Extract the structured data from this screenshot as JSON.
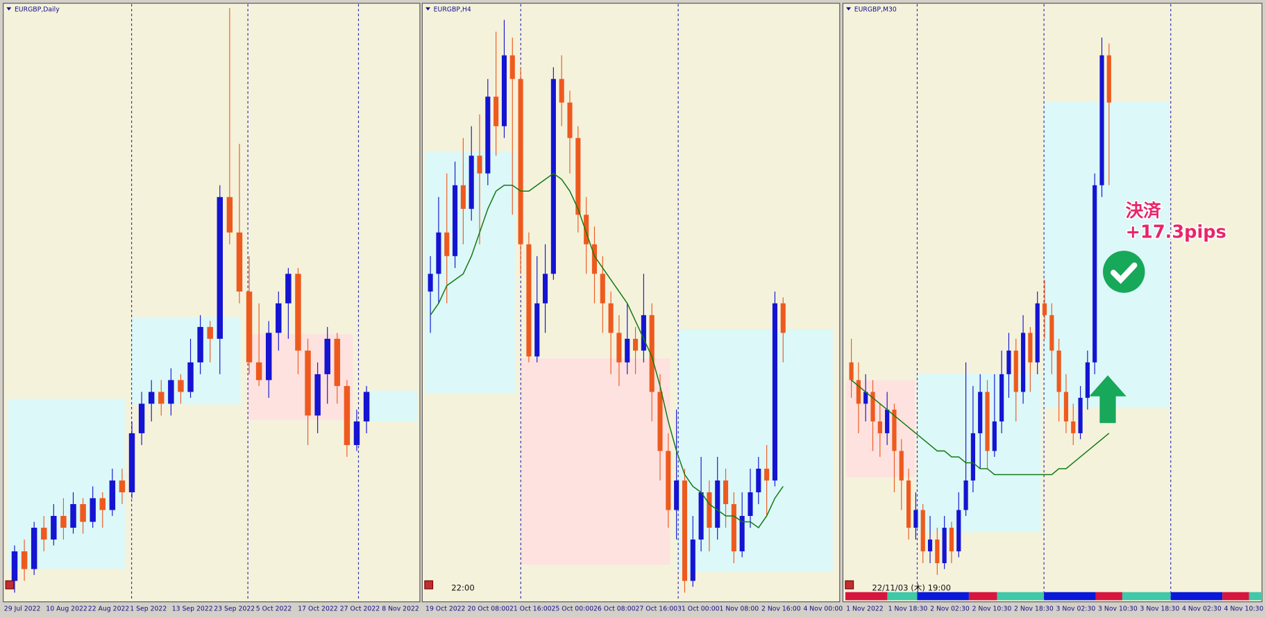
{
  "panels": [
    {
      "title": "EURGBP,Daily",
      "x_labels": [
        "29 Jul 2022",
        "10 Aug 2022",
        "22 Aug 2022",
        "1 Sep 2022",
        "13 Sep 2022",
        "23 Sep 2022",
        "5 Oct 2022",
        "17 Oct 2022",
        "27 Oct 2022",
        "8 Nov 2022"
      ],
      "candles": [
        [
          3,
          9,
          1,
          8
        ],
        [
          8,
          10,
          3,
          5
        ],
        [
          5,
          13,
          4,
          12
        ],
        [
          12,
          14,
          8,
          10
        ],
        [
          10,
          16,
          9,
          14
        ],
        [
          14,
          17,
          10,
          12
        ],
        [
          12,
          18,
          11,
          16
        ],
        [
          16,
          17,
          11,
          13
        ],
        [
          13,
          19,
          12,
          17
        ],
        [
          17,
          18,
          12,
          15
        ],
        [
          15,
          22,
          14,
          20
        ],
        [
          20,
          22,
          16,
          18
        ],
        [
          18,
          30,
          17,
          28
        ],
        [
          28,
          35,
          26,
          33
        ],
        [
          33,
          37,
          30,
          35
        ],
        [
          35,
          37,
          31,
          33
        ],
        [
          33,
          39,
          31,
          37
        ],
        [
          37,
          38,
          33,
          35
        ],
        [
          35,
          44,
          34,
          40
        ],
        [
          40,
          48,
          38,
          46
        ],
        [
          46,
          47,
          40,
          44
        ],
        [
          44,
          70,
          38,
          68
        ],
        [
          68,
          100,
          60,
          62
        ],
        [
          62,
          77,
          50,
          52
        ],
        [
          52,
          58,
          38,
          40
        ],
        [
          40,
          50,
          36,
          37
        ],
        [
          37,
          47,
          34,
          45
        ],
        [
          45,
          52,
          42,
          50
        ],
        [
          50,
          56,
          44,
          55
        ],
        [
          55,
          56,
          38,
          42
        ],
        [
          42,
          44,
          26,
          31
        ],
        [
          31,
          40,
          28,
          38
        ],
        [
          38,
          46,
          33,
          44
        ],
        [
          44,
          45,
          33,
          36
        ],
        [
          36,
          37,
          24,
          26
        ],
        [
          26,
          32,
          25,
          30
        ],
        [
          30,
          36,
          28,
          35
        ]
      ]
    },
    {
      "title": "EURGBP,H4",
      "x_labels": [
        "19 Oct 2022",
        "20 Oct 08:00",
        "21 Oct 16:00",
        "25 Oct 00:00",
        "26 Oct 08:00",
        "27 Oct 16:00",
        "31 Oct 00:00",
        "1 Nov 08:00",
        "2 Nov 16:00",
        "4 Nov 00:00"
      ],
      "time_label": "22:00",
      "candles": [
        [
          52,
          58,
          45,
          55
        ],
        [
          55,
          68,
          50,
          62
        ],
        [
          62,
          72,
          50,
          58
        ],
        [
          58,
          74,
          56,
          70
        ],
        [
          70,
          78,
          60,
          66
        ],
        [
          66,
          80,
          64,
          75
        ],
        [
          75,
          82,
          60,
          72
        ],
        [
          72,
          88,
          70,
          85
        ],
        [
          85,
          96,
          75,
          80
        ],
        [
          80,
          98,
          78,
          92
        ],
        [
          92,
          95,
          65,
          88
        ],
        [
          88,
          90,
          55,
          60
        ],
        [
          60,
          62,
          40,
          41
        ],
        [
          41,
          58,
          40,
          50
        ],
        [
          50,
          60,
          45,
          55
        ],
        [
          55,
          90,
          54,
          88
        ],
        [
          88,
          92,
          80,
          84
        ],
        [
          84,
          86,
          72,
          78
        ],
        [
          78,
          80,
          62,
          65
        ],
        [
          65,
          68,
          55,
          60
        ],
        [
          60,
          63,
          50,
          55
        ],
        [
          55,
          58,
          45,
          50
        ],
        [
          50,
          52,
          38,
          45
        ],
        [
          45,
          48,
          36,
          40
        ],
        [
          40,
          50,
          38,
          44
        ],
        [
          44,
          46,
          38,
          42
        ],
        [
          42,
          55,
          40,
          48
        ],
        [
          48,
          50,
          30,
          35
        ],
        [
          35,
          38,
          20,
          25
        ],
        [
          25,
          28,
          12,
          15
        ],
        [
          15,
          32,
          10,
          20
        ],
        [
          20,
          22,
          1,
          3
        ],
        [
          3,
          14,
          2,
          10
        ],
        [
          10,
          24,
          8,
          18
        ],
        [
          18,
          20,
          8,
          12
        ],
        [
          12,
          24,
          10,
          20
        ],
        [
          20,
          22,
          12,
          16
        ],
        [
          16,
          18,
          6,
          8
        ],
        [
          8,
          18,
          7,
          14
        ],
        [
          14,
          22,
          12,
          18
        ],
        [
          18,
          24,
          16,
          22
        ],
        [
          22,
          26,
          14,
          20
        ],
        [
          20,
          52,
          19,
          50
        ],
        [
          50,
          51,
          40,
          45
        ]
      ],
      "ma": [
        48,
        50,
        53,
        54,
        55,
        58,
        62,
        66,
        69,
        70,
        70,
        69,
        69,
        70,
        71,
        72,
        71,
        69,
        66,
        62,
        58,
        56,
        54,
        52,
        50,
        47,
        44,
        41,
        36,
        30,
        25,
        21,
        19,
        18,
        16,
        15,
        14,
        14,
        13,
        13,
        12,
        14,
        17,
        19
      ]
    },
    {
      "title": "EURGBP,M30",
      "x_labels": [
        "1 Nov 2022",
        "1 Nov 18:30",
        "2 Nov 02:30",
        "2 Nov 10:30",
        "2 Nov 18:30",
        "3 Nov 02:30",
        "3 Nov 10:30",
        "3 Nov 18:30",
        "4 Nov 02:30",
        "4 Nov 10:30"
      ],
      "time_label": "22/11/03 (木) 19:00",
      "candles": [
        [
          40,
          44,
          34,
          37
        ],
        [
          37,
          40,
          28,
          33
        ],
        [
          33,
          38,
          30,
          35
        ],
        [
          35,
          37,
          25,
          30
        ],
        [
          30,
          33,
          24,
          28
        ],
        [
          28,
          35,
          26,
          32
        ],
        [
          32,
          33,
          18,
          25
        ],
        [
          25,
          27,
          15,
          20
        ],
        [
          20,
          22,
          10,
          12
        ],
        [
          12,
          18,
          10,
          15
        ],
        [
          15,
          16,
          6,
          8
        ],
        [
          8,
          14,
          6,
          10
        ],
        [
          10,
          12,
          4,
          6
        ],
        [
          6,
          14,
          5,
          12
        ],
        [
          12,
          13,
          6,
          8
        ],
        [
          8,
          18,
          7,
          15
        ],
        [
          15,
          40,
          14,
          20
        ],
        [
          20,
          36,
          18,
          28
        ],
        [
          28,
          38,
          22,
          35
        ],
        [
          35,
          37,
          22,
          25
        ],
        [
          25,
          38,
          24,
          30
        ],
        [
          30,
          42,
          28,
          38
        ],
        [
          38,
          45,
          34,
          42
        ],
        [
          42,
          44,
          30,
          35
        ],
        [
          35,
          48,
          33,
          45
        ],
        [
          45,
          46,
          35,
          40
        ],
        [
          40,
          52,
          38,
          50
        ],
        [
          50,
          54,
          44,
          48
        ],
        [
          48,
          50,
          38,
          42
        ],
        [
          42,
          44,
          30,
          35
        ],
        [
          35,
          38,
          28,
          30
        ],
        [
          30,
          33,
          26,
          28
        ],
        [
          28,
          36,
          27,
          34
        ],
        [
          34,
          42,
          32,
          40
        ],
        [
          40,
          72,
          38,
          70
        ],
        [
          70,
          95,
          68,
          92
        ],
        [
          92,
          94,
          70,
          84
        ]
      ],
      "ma": [
        37,
        36,
        35,
        34,
        33,
        32,
        31,
        30,
        29,
        28,
        27,
        26,
        25,
        25,
        24,
        24,
        23,
        23,
        22,
        22,
        21,
        21,
        21,
        21,
        21,
        21,
        21,
        21,
        21,
        22,
        22,
        23,
        24,
        25,
        26,
        27,
        28
      ],
      "annotation": {
        "line1": "決済",
        "line2": "+17.3pips"
      }
    }
  ]
}
